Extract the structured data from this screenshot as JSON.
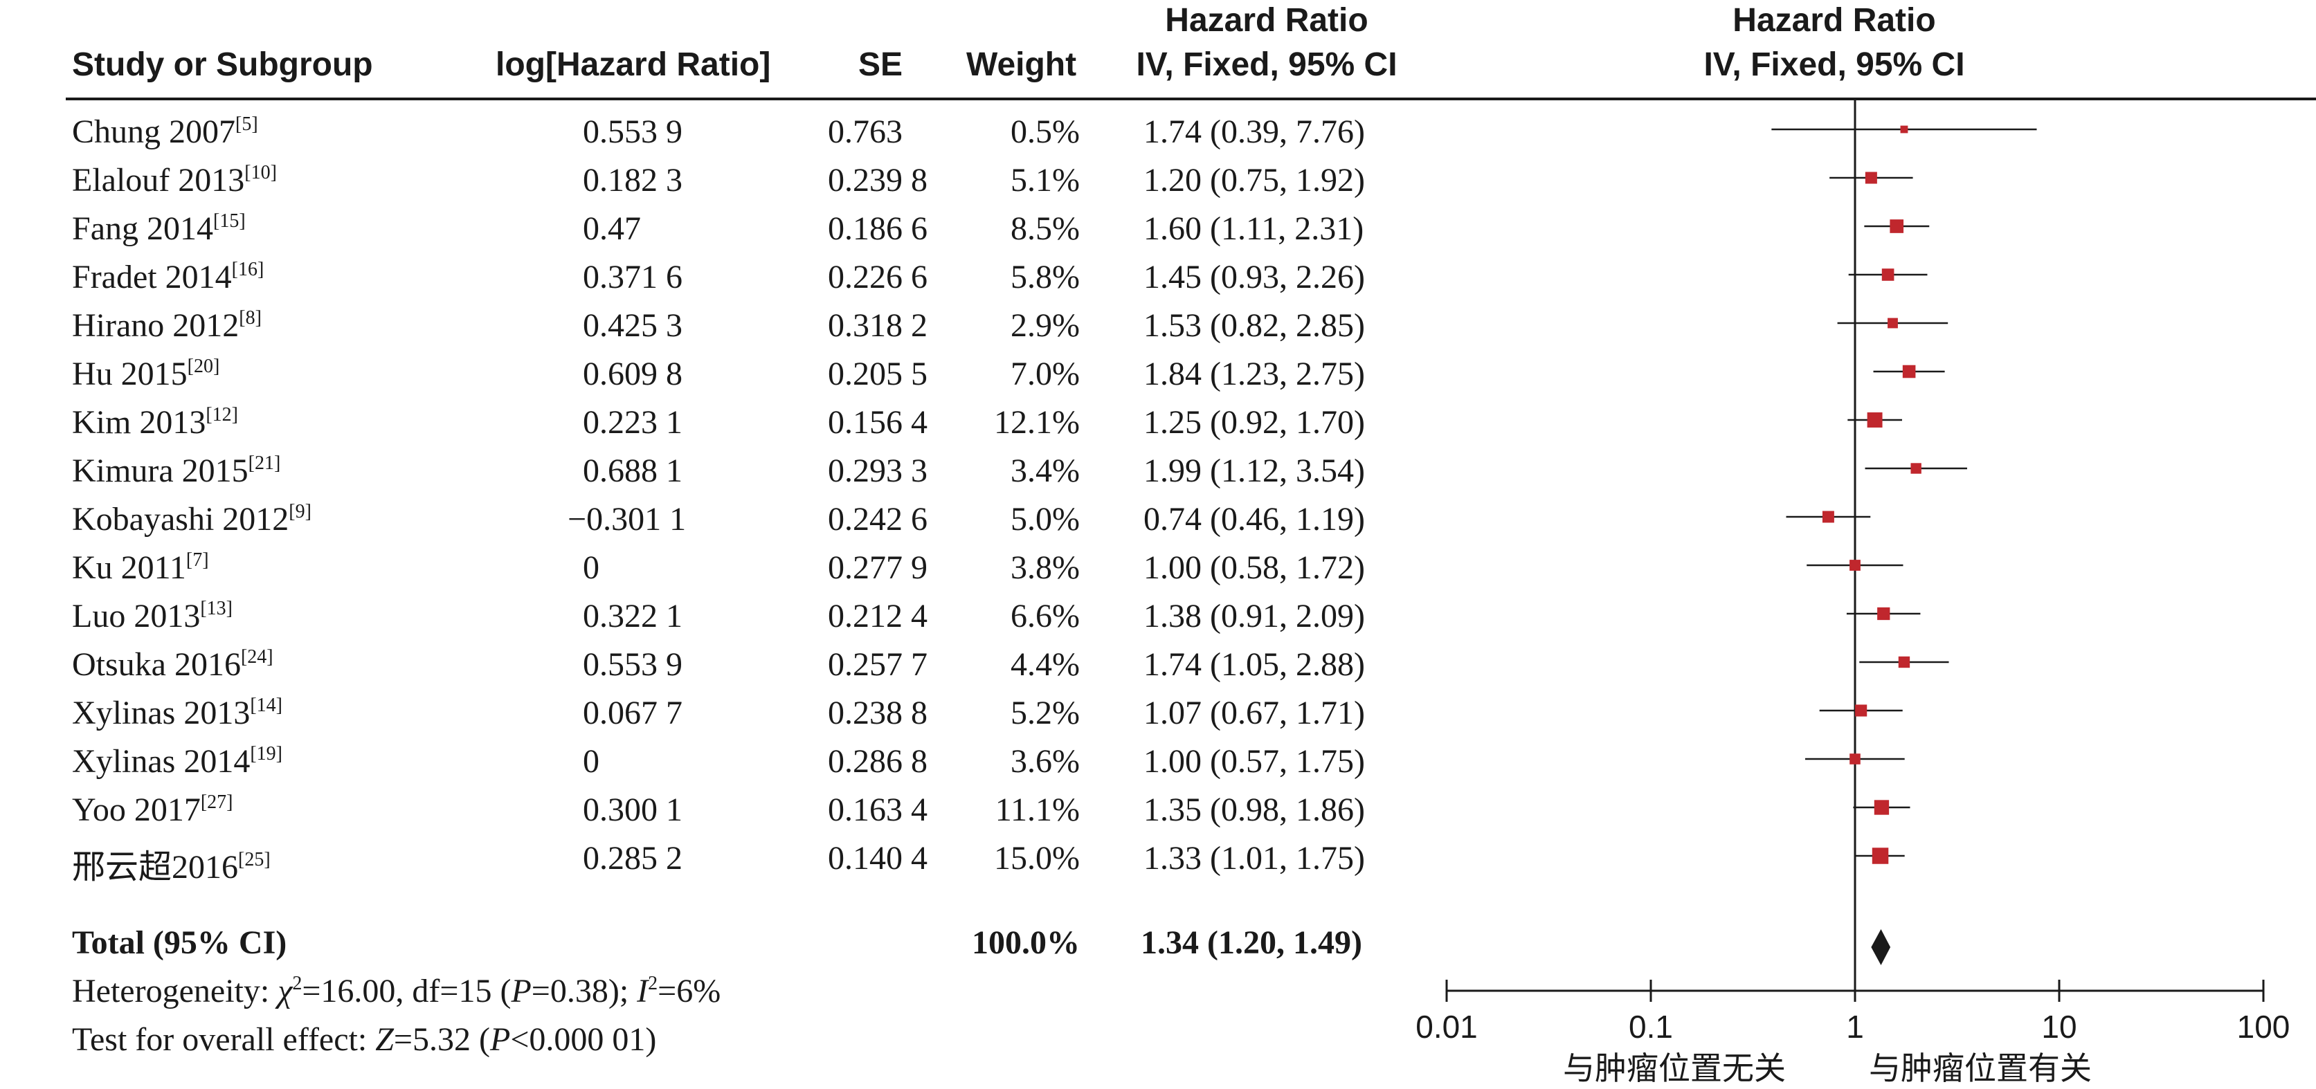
{
  "headers": {
    "study": "Study or Subgroup",
    "log_hr": "log[Hazard Ratio]",
    "se": "SE",
    "weight": "Weight",
    "hr_top": "Hazard Ratio",
    "hr_bottom": "IV, Fixed, 95% CI",
    "plot_top": "Hazard Ratio",
    "plot_bottom": "IV, Fixed, 95% CI"
  },
  "rows": [
    {
      "study": "Chung 2007",
      "ref": "[5]",
      "log_hr": "0.553 9",
      "se": "0.763",
      "weight": "0.5%",
      "hr_ci": "1.74 (0.39, 7.76)"
    },
    {
      "study": "Elalouf 2013",
      "ref": "[10]",
      "log_hr": "0.182 3",
      "se": "0.239 8",
      "weight": "5.1%",
      "hr_ci": "1.20 (0.75, 1.92)"
    },
    {
      "study": "Fang 2014",
      "ref": "[15]",
      "log_hr": "0.47",
      "se": "0.186 6",
      "weight": "8.5%",
      "hr_ci": "1.60 (1.11, 2.31)"
    },
    {
      "study": "Fradet 2014",
      "ref": "[16]",
      "log_hr": "0.371 6",
      "se": "0.226 6",
      "weight": "5.8%",
      "hr_ci": "1.45 (0.93, 2.26)"
    },
    {
      "study": "Hirano 2012",
      "ref": "[8]",
      "log_hr": "0.425 3",
      "se": "0.318 2",
      "weight": "2.9%",
      "hr_ci": "1.53 (0.82, 2.85)"
    },
    {
      "study": "Hu 2015",
      "ref": "[20]",
      "log_hr": "0.609 8",
      "se": "0.205 5",
      "weight": "7.0%",
      "hr_ci": "1.84 (1.23, 2.75)"
    },
    {
      "study": "Kim 2013",
      "ref": "[12]",
      "log_hr": "0.223 1",
      "se": "0.156 4",
      "weight": "12.1%",
      "hr_ci": "1.25 (0.92, 1.70)"
    },
    {
      "study": "Kimura 2015",
      "ref": "[21]",
      "log_hr": "0.688 1",
      "se": "0.293 3",
      "weight": "3.4%",
      "hr_ci": "1.99 (1.12, 3.54)"
    },
    {
      "study": "Kobayashi 2012",
      "ref": "[9]",
      "log_hr": "−0.301 1",
      "se": "0.242 6",
      "weight": "5.0%",
      "hr_ci": "0.74 (0.46, 1.19)"
    },
    {
      "study": "Ku 2011",
      "ref": "[7]",
      "log_hr": "0",
      "se": "0.277 9",
      "weight": "3.8%",
      "hr_ci": "1.00 (0.58, 1.72)"
    },
    {
      "study": "Luo 2013",
      "ref": "[13]",
      "log_hr": "0.322 1",
      "se": "0.212 4",
      "weight": "6.6%",
      "hr_ci": "1.38 (0.91, 2.09)"
    },
    {
      "study": "Otsuka 2016",
      "ref": "[24]",
      "log_hr": "0.553 9",
      "se": "0.257 7",
      "weight": "4.4%",
      "hr_ci": "1.74 (1.05, 2.88)"
    },
    {
      "study": "Xylinas 2013",
      "ref": "[14]",
      "log_hr": "0.067 7",
      "se": "0.238 8",
      "weight": "5.2%",
      "hr_ci": "1.07 (0.67, 1.71)"
    },
    {
      "study": "Xylinas 2014",
      "ref": "[19]",
      "log_hr": "0",
      "se": "0.286 8",
      "weight": "3.6%",
      "hr_ci": "1.00 (0.57, 1.75)"
    },
    {
      "study": "Yoo 2017",
      "ref": "[27]",
      "log_hr": "0.300 1",
      "se": "0.163 4",
      "weight": "11.1%",
      "hr_ci": "1.35 (0.98, 1.86)"
    },
    {
      "study": "邢云超2016",
      "ref": "[25]",
      "log_hr": "0.285 2",
      "se": "0.140 4",
      "weight": "15.0%",
      "hr_ci": "1.33 (1.01, 1.75)"
    }
  ],
  "total": {
    "label": "Total (95% CI)",
    "weight": "100.0%",
    "hr_ci": "1.34 (1.20, 1.49)"
  },
  "heterogeneity": {
    "prefix": "Heterogeneity: ",
    "chi": "χ",
    "chi_sup": "2",
    "chi_val": "=16.00, df=15 (",
    "p_var": "P",
    "p_val": "=0.38); ",
    "i_var": "I",
    "i_sup": "2",
    "i_val": "=6%"
  },
  "overall": {
    "prefix": "Test for overall effect: ",
    "z_var": "Z",
    "z_val": "=5.32 (",
    "p_var": "P",
    "p_val": "<0.000 01)"
  },
  "axis": {
    "ticks": [
      "0.01",
      "0.1",
      "1",
      "10",
      "100"
    ],
    "label_left": "与肿瘤位置无关",
    "label_right": "与肿瘤位置有关"
  },
  "colors": {
    "marker": "#c0272d",
    "diamond": "#1a1a1a",
    "line": "#1a1a1a"
  },
  "chart_data": {
    "type": "forest",
    "scale": "log",
    "xlim": [
      0.01,
      100
    ],
    "reference_line": 1,
    "studies": [
      {
        "name": "Chung 2007",
        "hr": 1.74,
        "lo": 0.39,
        "hi": 7.76,
        "weight": 0.5
      },
      {
        "name": "Elalouf 2013",
        "hr": 1.2,
        "lo": 0.75,
        "hi": 1.92,
        "weight": 5.1
      },
      {
        "name": "Fang 2014",
        "hr": 1.6,
        "lo": 1.11,
        "hi": 2.31,
        "weight": 8.5
      },
      {
        "name": "Fradet 2014",
        "hr": 1.45,
        "lo": 0.93,
        "hi": 2.26,
        "weight": 5.8
      },
      {
        "name": "Hirano 2012",
        "hr": 1.53,
        "lo": 0.82,
        "hi": 2.85,
        "weight": 2.9
      },
      {
        "name": "Hu 2015",
        "hr": 1.84,
        "lo": 1.23,
        "hi": 2.75,
        "weight": 7.0
      },
      {
        "name": "Kim 2013",
        "hr": 1.25,
        "lo": 0.92,
        "hi": 1.7,
        "weight": 12.1
      },
      {
        "name": "Kimura 2015",
        "hr": 1.99,
        "lo": 1.12,
        "hi": 3.54,
        "weight": 3.4
      },
      {
        "name": "Kobayashi 2012",
        "hr": 0.74,
        "lo": 0.46,
        "hi": 1.19,
        "weight": 5.0
      },
      {
        "name": "Ku 2011",
        "hr": 1.0,
        "lo": 0.58,
        "hi": 1.72,
        "weight": 3.8
      },
      {
        "name": "Luo 2013",
        "hr": 1.38,
        "lo": 0.91,
        "hi": 2.09,
        "weight": 6.6
      },
      {
        "name": "Otsuka 2016",
        "hr": 1.74,
        "lo": 1.05,
        "hi": 2.88,
        "weight": 4.4
      },
      {
        "name": "Xylinas 2013",
        "hr": 1.07,
        "lo": 0.67,
        "hi": 1.71,
        "weight": 5.2
      },
      {
        "name": "Xylinas 2014",
        "hr": 1.0,
        "lo": 0.57,
        "hi": 1.75,
        "weight": 3.6
      },
      {
        "name": "Yoo 2017",
        "hr": 1.35,
        "lo": 0.98,
        "hi": 1.86,
        "weight": 11.1
      },
      {
        "name": "邢云超2016",
        "hr": 1.33,
        "lo": 1.01,
        "hi": 1.75,
        "weight": 15.0
      }
    ],
    "pooled": {
      "hr": 1.34,
      "lo": 1.2,
      "hi": 1.49
    }
  }
}
